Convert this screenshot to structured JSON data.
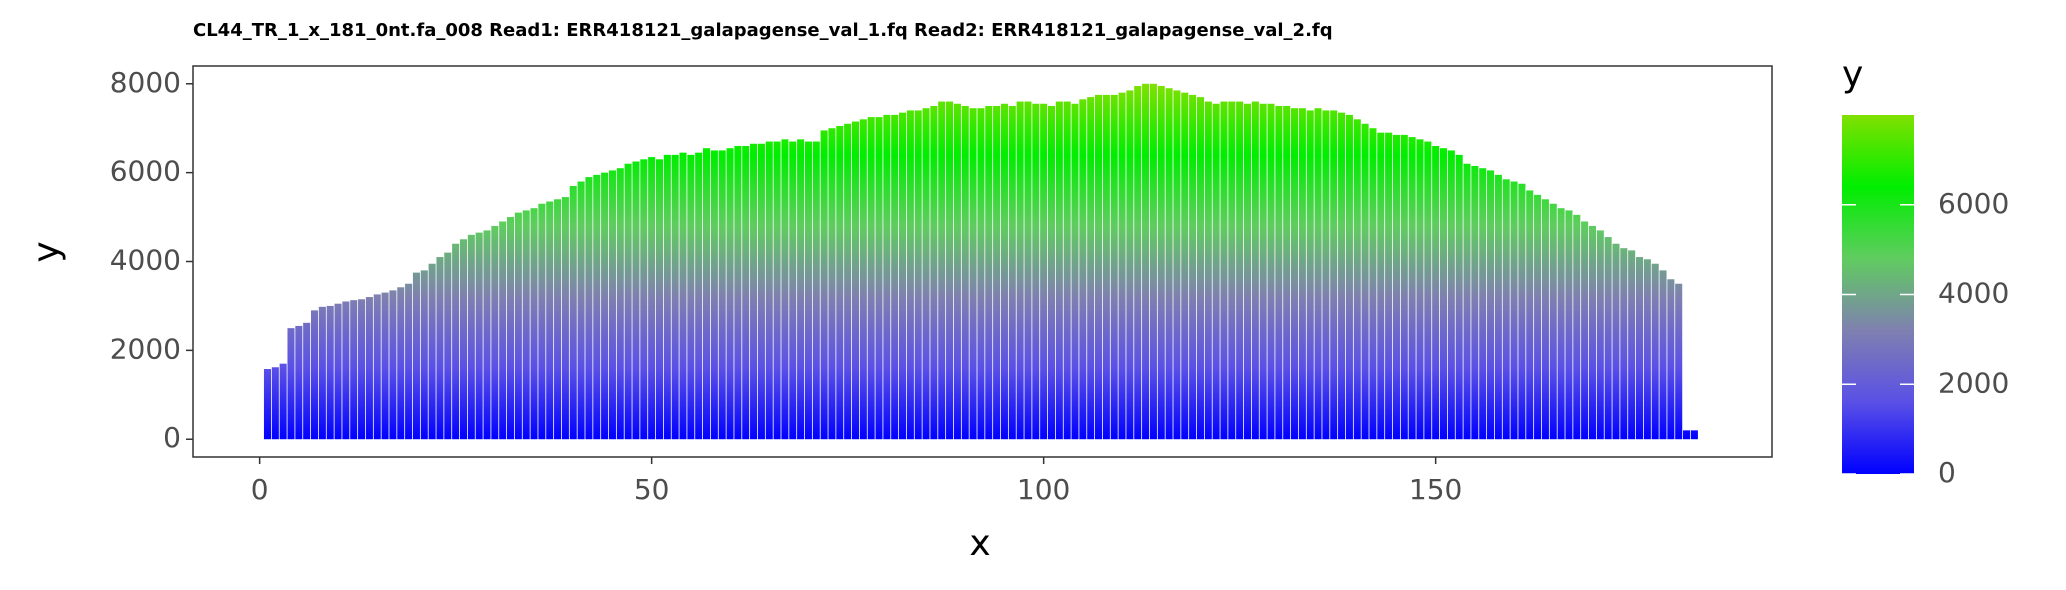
{
  "chart_data": {
    "type": "bar",
    "title": "CL44_TR_1_x_181_0nt.fa_008 Read1: ERR418121_galapagense_val_1.fq Read2: ERR418121_galapagense_val_2.fq",
    "x_label": "x",
    "y_label": "y",
    "x": [
      1,
      2,
      3,
      4,
      5,
      6,
      7,
      8,
      9,
      10,
      11,
      12,
      13,
      14,
      15,
      16,
      17,
      18,
      19,
      20,
      21,
      22,
      23,
      24,
      25,
      26,
      27,
      28,
      29,
      30,
      31,
      32,
      33,
      34,
      35,
      36,
      37,
      38,
      39,
      40,
      41,
      42,
      43,
      44,
      45,
      46,
      47,
      48,
      49,
      50,
      51,
      52,
      53,
      54,
      55,
      56,
      57,
      58,
      59,
      60,
      61,
      62,
      63,
      64,
      65,
      66,
      67,
      68,
      69,
      70,
      71,
      72,
      73,
      74,
      75,
      76,
      77,
      78,
      79,
      80,
      81,
      82,
      83,
      84,
      85,
      86,
      87,
      88,
      89,
      90,
      91,
      92,
      93,
      94,
      95,
      96,
      97,
      98,
      99,
      100,
      101,
      102,
      103,
      104,
      105,
      106,
      107,
      108,
      109,
      110,
      111,
      112,
      113,
      114,
      115,
      116,
      117,
      118,
      119,
      120,
      121,
      122,
      123,
      124,
      125,
      126,
      127,
      128,
      129,
      130,
      131,
      132,
      133,
      134,
      135,
      136,
      137,
      138,
      139,
      140,
      141,
      142,
      143,
      144,
      145,
      146,
      147,
      148,
      149,
      150,
      151,
      152,
      153,
      154,
      155,
      156,
      157,
      158,
      159,
      160,
      161,
      162,
      163,
      164,
      165,
      166,
      167,
      168,
      169,
      170,
      171,
      172,
      173,
      174,
      175,
      176,
      177,
      178,
      179,
      180,
      181,
      182,
      183
    ],
    "values": [
      1580,
      1620,
      1700,
      2500,
      2550,
      2620,
      2900,
      2980,
      3000,
      3050,
      3100,
      3130,
      3150,
      3200,
      3260,
      3300,
      3350,
      3420,
      3500,
      3750,
      3800,
      3950,
      4100,
      4200,
      4400,
      4500,
      4600,
      4650,
      4700,
      4800,
      4900,
      5000,
      5100,
      5150,
      5200,
      5300,
      5350,
      5400,
      5450,
      5700,
      5800,
      5900,
      5950,
      6000,
      6050,
      6100,
      6200,
      6250,
      6300,
      6350,
      6300,
      6400,
      6400,
      6450,
      6400,
      6450,
      6550,
      6500,
      6500,
      6550,
      6600,
      6600,
      6650,
      6650,
      6700,
      6700,
      6750,
      6700,
      6750,
      6700,
      6700,
      6950,
      7000,
      7050,
      7100,
      7150,
      7200,
      7250,
      7250,
      7300,
      7300,
      7350,
      7400,
      7400,
      7450,
      7500,
      7600,
      7600,
      7550,
      7500,
      7450,
      7450,
      7500,
      7500,
      7550,
      7500,
      7600,
      7600,
      7550,
      7550,
      7500,
      7600,
      7600,
      7550,
      7650,
      7700,
      7750,
      7750,
      7750,
      7800,
      7850,
      7950,
      8000,
      8000,
      7950,
      7900,
      7850,
      7800,
      7750,
      7700,
      7600,
      7550,
      7600,
      7600,
      7600,
      7550,
      7600,
      7550,
      7550,
      7500,
      7500,
      7450,
      7450,
      7400,
      7450,
      7400,
      7400,
      7350,
      7300,
      7200,
      7100,
      7000,
      6900,
      6900,
      6850,
      6850,
      6800,
      6750,
      6700,
      6600,
      6550,
      6500,
      6400,
      6200,
      6150,
      6100,
      6050,
      5950,
      5850,
      5800,
      5750,
      5600,
      5500,
      5400,
      5300,
      5200,
      5150,
      5050,
      4900,
      4800,
      4700,
      4550,
      4400,
      4300,
      4250,
      4100,
      4050,
      3950,
      3800,
      3600,
      3500,
      200,
      200
    ],
    "xlim": [
      -8.5,
      192.9
    ],
    "xticks": [
      0,
      50,
      100,
      150
    ],
    "ylim": [
      -400,
      8400
    ],
    "yticks": [
      0,
      2000,
      4000,
      6000,
      8000
    ],
    "colorbar": {
      "title": "y",
      "lim": [
        0,
        8000
      ],
      "ticks": [
        0,
        2000,
        4000,
        6000
      ],
      "colors": [
        "#0000ff",
        "#5a50e6",
        "#7f80b0",
        "#60cc60",
        "#00ee00",
        "#80e000"
      ]
    }
  }
}
